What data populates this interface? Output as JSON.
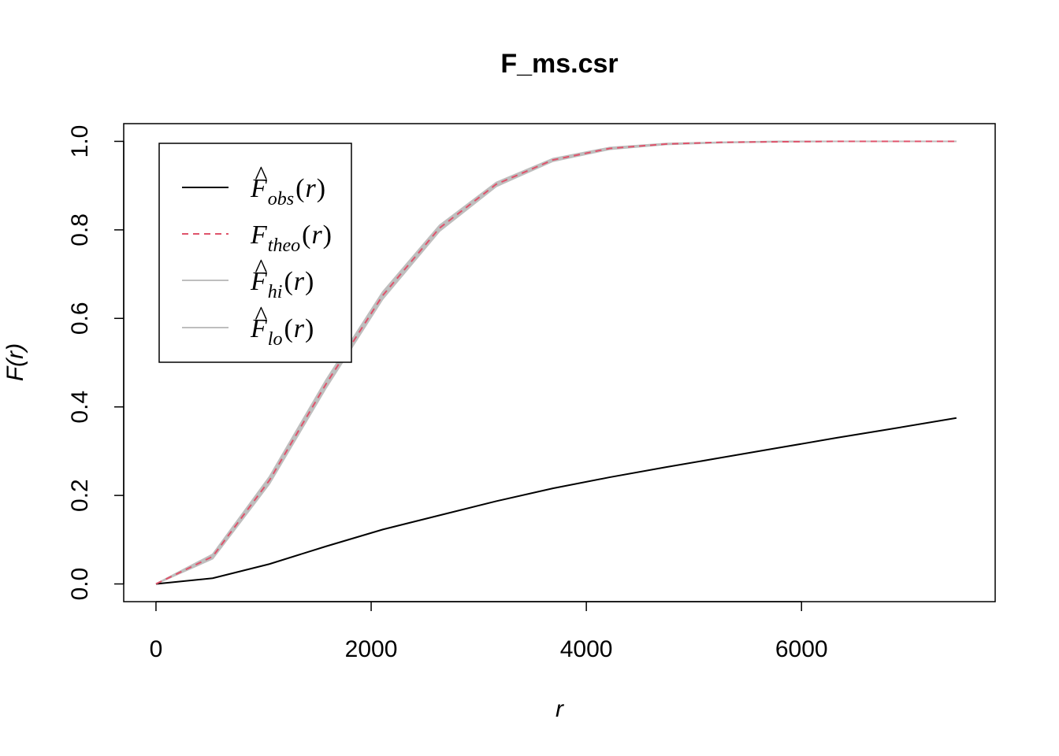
{
  "chart_data": {
    "type": "line",
    "title": "F_ms.csr",
    "xlabel": "r",
    "ylabel": "F(r)",
    "xlim": [
      -300,
      7800
    ],
    "ylim": [
      -0.04,
      1.04
    ],
    "x_ticks": [
      0,
      2000,
      4000,
      6000
    ],
    "x_tick_labels": [
      "0",
      "2000",
      "4000",
      "6000"
    ],
    "y_ticks": [
      0.0,
      0.2,
      0.4,
      0.6,
      0.8,
      1.0
    ],
    "y_tick_labels": [
      "0.0",
      "0.2",
      "0.4",
      "0.6",
      "0.8",
      "1.0"
    ],
    "grid": false,
    "legend_position": "top-left",
    "x": [
      0,
      527,
      1054,
      1581,
      2108,
      2635,
      3162,
      3689,
      4216,
      4743,
      5270,
      5797,
      6324,
      6851,
      7440
    ],
    "series": [
      {
        "key": "obs",
        "values": [
          0.0,
          0.013,
          0.045,
          0.085,
          0.123,
          0.155,
          0.187,
          0.216,
          0.241,
          0.264,
          0.286,
          0.308,
          0.33,
          0.351,
          0.375
        ],
        "color": "#000000",
        "dash": "solid",
        "legend": {
          "main": "F",
          "hat": true,
          "sub": "obs"
        }
      },
      {
        "key": "theo",
        "values": [
          0.0,
          0.062,
          0.234,
          0.452,
          0.652,
          0.804,
          0.903,
          0.958,
          0.984,
          0.994,
          0.998,
          0.999,
          1.0,
          1.0,
          1.0
        ],
        "color": "#DF536B",
        "dash": "dashed",
        "legend": {
          "main": "F",
          "hat": false,
          "sub": "theo"
        }
      },
      {
        "key": "hi",
        "values": [
          0.0,
          0.067,
          0.242,
          0.461,
          0.66,
          0.81,
          0.907,
          0.961,
          0.986,
          0.995,
          0.998,
          1.0,
          1.0,
          1.0,
          1.0
        ],
        "color": "#BEBEBE",
        "dash": "solid",
        "legend": {
          "main": "F",
          "hat": true,
          "sub": "hi"
        }
      },
      {
        "key": "lo",
        "values": [
          0.0,
          0.057,
          0.226,
          0.443,
          0.644,
          0.797,
          0.898,
          0.955,
          0.982,
          0.993,
          0.997,
          0.999,
          1.0,
          1.0,
          1.0
        ],
        "color": "#BEBEBE",
        "dash": "solid",
        "legend": {
          "main": "F",
          "hat": true,
          "sub": "lo"
        }
      }
    ],
    "legend_text": {
      "open": "(",
      "var": "r",
      "close": ")",
      "hat": "^"
    }
  }
}
